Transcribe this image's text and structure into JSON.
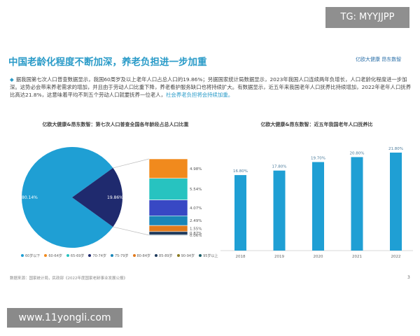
{
  "overlay": {
    "tg": "TG: MYYJJPP",
    "site": "www.11yongli.com"
  },
  "header": {
    "title": "中国老龄化程度不断加深，养老负担进一步加重",
    "logo": "亿欧大健康 昂东数智"
  },
  "body": {
    "text": "据我国第七次人口普查数据显示，我国60周岁及以上老年人口占总人口的19.86%；另据国家统计局数据显示，2023年我国人口连续两年负增长，人口老龄化程度进一步加深。这势必会带来养老需求的增加，并且由于劳动人口比重下降，养老看护服务缺口也将持续扩大。有数据显示，近五年来我国老年人口抚养比持续增加，2022年老年人口抚养比高达21.8%，这意味着平均不到五个劳动人口就要抚养一位老人，",
    "highlight": "社会养老负担将会持续加重。"
  },
  "chart_data": [
    {
      "type": "pie",
      "title": "亿欧大健康&昂东数智：第七次人口普查全国各年龄段占总人口比重",
      "slices": [
        {
          "label": "80.14%",
          "value": 80.14,
          "color": "#1f9fd4"
        },
        {
          "label": "19.86%",
          "value": 19.86,
          "color": "#1f2a6e"
        }
      ],
      "breakdown": [
        {
          "label": "4.98%",
          "value": 4.98,
          "color": "#f18a1d"
        },
        {
          "label": "5.54%",
          "value": 5.54,
          "color": "#27c3c0"
        },
        {
          "label": "4.07%",
          "value": 4.07,
          "color": "#3848c4"
        },
        {
          "label": "2.49%",
          "value": 2.49,
          "color": "#1a86b8"
        },
        {
          "label": "1.55%",
          "value": 1.55,
          "color": "#e17a1c"
        },
        {
          "label": "0.87%",
          "value": 0.87,
          "color": "#1f3a5c"
        },
        {
          "label": "0.06%",
          "value": 0.06,
          "color": "#1a5e68"
        }
      ],
      "legend": [
        {
          "label": "60岁以下",
          "color": "#1f9fd4"
        },
        {
          "label": "60-64岁",
          "color": "#f18a1d"
        },
        {
          "label": "65-69岁",
          "color": "#27c3c0"
        },
        {
          "label": "70-74岁",
          "color": "#1f2a6e"
        },
        {
          "label": "75-79岁",
          "color": "#1a86b8"
        },
        {
          "label": "80-84岁",
          "color": "#e17a1c"
        },
        {
          "label": "85-89岁",
          "color": "#1f3a5c"
        },
        {
          "label": "90-94岁",
          "color": "#8a7a20"
        },
        {
          "label": "95岁以上",
          "color": "#1a5e68"
        }
      ]
    },
    {
      "type": "bar",
      "title": "亿欧大健康&昂东数智：近五年我国老年人口抚养比",
      "categories": [
        "2018",
        "2019",
        "2020",
        "2021",
        "2022"
      ],
      "values": [
        16.8,
        17.8,
        19.7,
        20.8,
        21.8
      ],
      "labels": [
        "16.80%",
        "17.80%",
        "19.70%",
        "20.80%",
        "21.80%"
      ],
      "ylim": [
        0,
        21.8
      ],
      "color": "#1f9fd4"
    }
  ],
  "footer": {
    "source": "数据来源：国家统计局，民政部《2022年度国家老龄事业发展公报》",
    "page": "3"
  }
}
